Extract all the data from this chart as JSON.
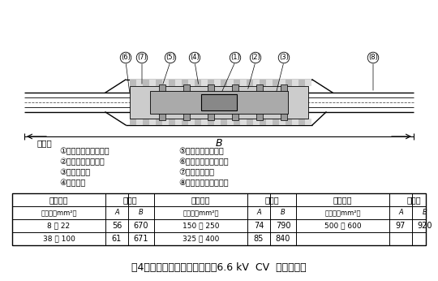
{
  "title": "第4図　中間接続部（差込式）6.6 kV  CV  ケーブル用",
  "notes_label": "（注）",
  "notes": [
    [
      "①：導体接続スリーブ",
      "⑤：半導電性テープ"
    ],
    [
      "②：スリーブカバー",
      "⑥：すずめっき軟銅線"
    ],
    [
      "③：スペーサ",
      "⑦：防水テープ"
    ],
    [
      "④：絶縁管",
      "⑧：ケーブル遮へい層"
    ]
  ],
  "table_header_row1": [
    "導体公称",
    "寸　法",
    "導体公称",
    "寸　法",
    "導体公称",
    "寸　法"
  ],
  "table_header_row2": [
    "断面積〔mm²〕",
    "A",
    "B",
    "断面積〔mm²〕",
    "A",
    "B",
    "断面積〔mm²〕",
    "A",
    "B"
  ],
  "table_data": [
    [
      "8 〜 22",
      "56",
      "670",
      "150 〜 250",
      "74",
      "790",
      "500 〜 600",
      "97",
      "920"
    ],
    [
      "38 〜 100",
      "61",
      "671",
      "325 〜 400",
      "85",
      "840",
      "",
      "",
      ""
    ]
  ],
  "bg_color": "#ffffff",
  "line_color": "#000000",
  "text_color": "#000000"
}
